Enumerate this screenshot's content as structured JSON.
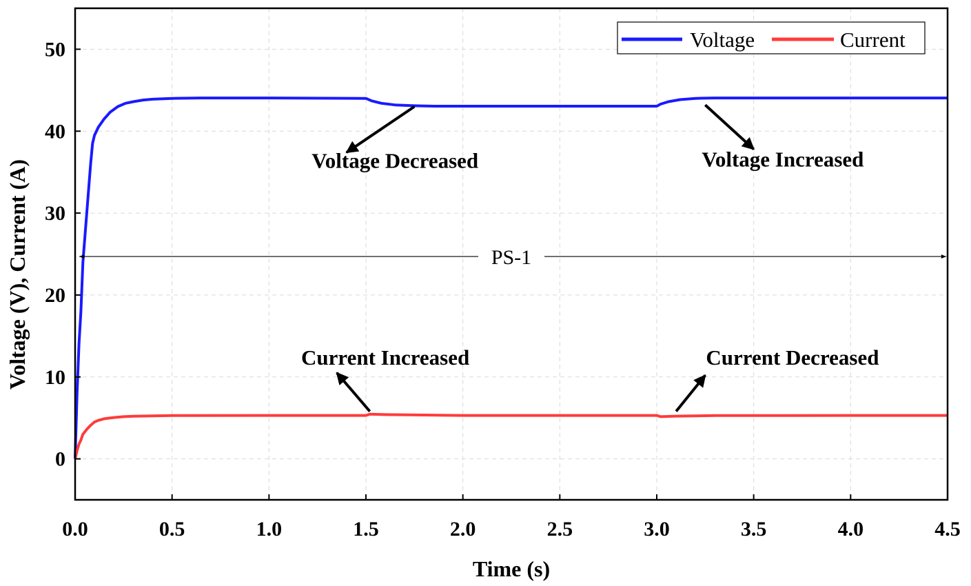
{
  "chart_data": {
    "type": "line",
    "title": "",
    "xlabel": "Time (s)",
    "ylabel": "Voltage (V), Current (A)",
    "xlim": [
      0,
      4.5
    ],
    "ylim": [
      -5,
      55
    ],
    "grid": true,
    "legend_position": "top-right",
    "x_ticks": [
      0.0,
      0.5,
      1.0,
      1.5,
      2.0,
      2.5,
      3.0,
      3.5,
      4.0,
      4.5
    ],
    "x_tick_labels": [
      "0.0",
      "0.5",
      "1.0",
      "1.5",
      "2.0",
      "2.5",
      "3.0",
      "3.5",
      "4.0",
      "4.5"
    ],
    "y_ticks": [
      0,
      10,
      20,
      30,
      40,
      50
    ],
    "y_tick_labels": [
      "0",
      "10",
      "20",
      "30",
      "40",
      "50"
    ],
    "series": [
      {
        "name": "Voltage",
        "color": "#1a1aff",
        "x": [
          0,
          0.01,
          0.02,
          0.03,
          0.04,
          0.05,
          0.06,
          0.07,
          0.08,
          0.09,
          0.1,
          0.12,
          0.15,
          0.18,
          0.22,
          0.26,
          0.3,
          0.35,
          0.4,
          0.5,
          0.65,
          1.0,
          1.5,
          1.53,
          1.58,
          1.65,
          1.75,
          1.85,
          2.0,
          2.5,
          3.0,
          3.02,
          3.06,
          3.12,
          3.2,
          3.3,
          3.5,
          4.0,
          4.5
        ],
        "y": [
          0,
          8,
          14,
          18,
          24,
          27,
          30,
          33,
          36,
          38.5,
          39.5,
          40.5,
          41.5,
          42.3,
          43.0,
          43.4,
          43.6,
          43.8,
          43.9,
          44.0,
          44.05,
          44.05,
          44.0,
          43.7,
          43.4,
          43.2,
          43.1,
          43.05,
          43.05,
          43.05,
          43.05,
          43.3,
          43.6,
          43.85,
          44.0,
          44.05,
          44.05,
          44.05,
          44.05
        ]
      },
      {
        "name": "Current",
        "color": "#ff3b3b",
        "x": [
          0,
          0.01,
          0.02,
          0.03,
          0.04,
          0.05,
          0.06,
          0.08,
          0.1,
          0.12,
          0.15,
          0.2,
          0.25,
          0.3,
          0.4,
          0.5,
          1.0,
          1.5,
          1.52,
          1.6,
          1.8,
          2.0,
          3.0,
          3.02,
          3.1,
          3.3,
          4.0,
          4.5
        ],
        "y": [
          0,
          1.0,
          1.8,
          2.3,
          3.0,
          3.3,
          3.6,
          4.1,
          4.5,
          4.7,
          4.9,
          5.05,
          5.15,
          5.2,
          5.25,
          5.28,
          5.3,
          5.3,
          5.45,
          5.4,
          5.35,
          5.3,
          5.3,
          5.15,
          5.22,
          5.28,
          5.3,
          5.3
        ]
      }
    ],
    "annotations": [
      {
        "text": "Voltage Decreased",
        "label_pos": [
          1.65,
          35.5
        ],
        "arrow_from": [
          1.75,
          43.0
        ],
        "arrow_to": [
          1.4,
          37.4
        ]
      },
      {
        "text": "Voltage Increased",
        "label_pos": [
          3.65,
          35.7
        ],
        "arrow_from": [
          3.25,
          43.2
        ],
        "arrow_to": [
          3.5,
          37.8
        ]
      },
      {
        "text": "Current Increased",
        "label_pos": [
          1.6,
          11.5
        ],
        "arrow_from": [
          1.52,
          5.8
        ],
        "arrow_to": [
          1.35,
          10.5
        ]
      },
      {
        "text": "Current Decreased",
        "label_pos": [
          3.7,
          11.5
        ],
        "arrow_from": [
          3.1,
          5.8
        ],
        "arrow_to": [
          3.25,
          10.2
        ]
      }
    ],
    "range_marker": {
      "text": "PS-1",
      "x_from": 0.0,
      "x_to": 4.5,
      "y": 24.7
    }
  }
}
